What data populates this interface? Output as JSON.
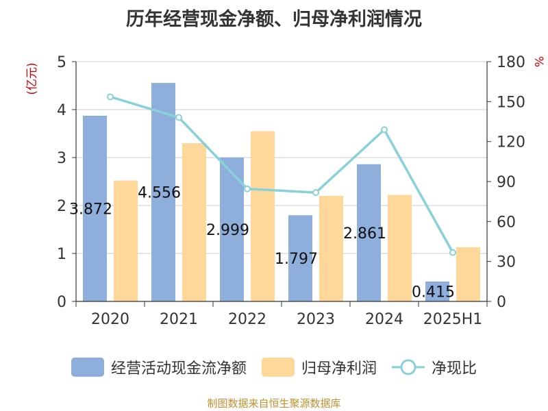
{
  "chart_data": {
    "type": "bar",
    "title": "历年经营现金净额、归母净利润情况",
    "categories": [
      "2020",
      "2021",
      "2022",
      "2023",
      "2024",
      "2025H1"
    ],
    "y_left": {
      "unit_label": "(亿元)",
      "range": [
        0,
        5
      ],
      "ticks": [
        "0",
        "1",
        "2",
        "3",
        "4",
        "5"
      ]
    },
    "y_right": {
      "unit_label": "%",
      "range": [
        0,
        180
      ],
      "ticks": [
        "0",
        "30",
        "60",
        "90",
        "120",
        "150",
        "180"
      ]
    },
    "series": [
      {
        "name": "经营活动现金流净额",
        "type": "bar",
        "axis": "left",
        "color": "#8eaedb",
        "values": [
          3.872,
          4.556,
          2.999,
          1.797,
          2.861,
          0.415
        ],
        "labels": [
          "3.872",
          "4.556",
          "2.999",
          "1.797",
          "2.861",
          "0.415"
        ]
      },
      {
        "name": "归母净利润",
        "type": "bar",
        "axis": "left",
        "color": "#fdd89a",
        "values": [
          2.52,
          3.3,
          3.55,
          2.2,
          2.22,
          1.13
        ]
      },
      {
        "name": "净现比",
        "type": "line",
        "axis": "right",
        "color": "#88d1d8",
        "values": [
          153.6,
          138.1,
          84.5,
          81.7,
          128.9,
          36.7
        ]
      }
    ],
    "grid": true,
    "legend_position": "bottom"
  },
  "source_note": "制图数据来自恒生聚源数据库",
  "colors": {
    "title": "#333333",
    "axis_unit": "#cc0000",
    "source_note": "#c09030"
  }
}
